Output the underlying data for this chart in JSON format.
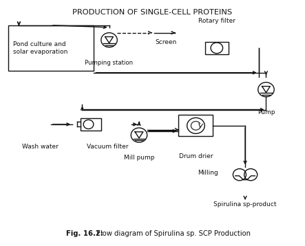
{
  "title": "PRODUCTION OF SINGLE-CELL PROTEINS",
  "caption_bold": "Fig. 16.2:",
  "caption_rest": " Flow diagram of Spirulina sp. SCP Production",
  "bg_color": "#ffffff",
  "line_color": "#111111",
  "text_color": "#111111",
  "figsize": [
    4.43,
    3.58
  ],
  "dpi": 100,
  "labels": {
    "pond": "Pond culture and\nsolar evaporation",
    "pumping": "Pumping station",
    "screen": "Screen",
    "rotary": "Rotary filter",
    "pump": "Pump",
    "vacuum": "Vacuum filter",
    "wash": "Wash water",
    "mill": "Mill pump",
    "drum": "Drum drier",
    "milling": "Milling",
    "product": "Spirulina sp-product"
  }
}
